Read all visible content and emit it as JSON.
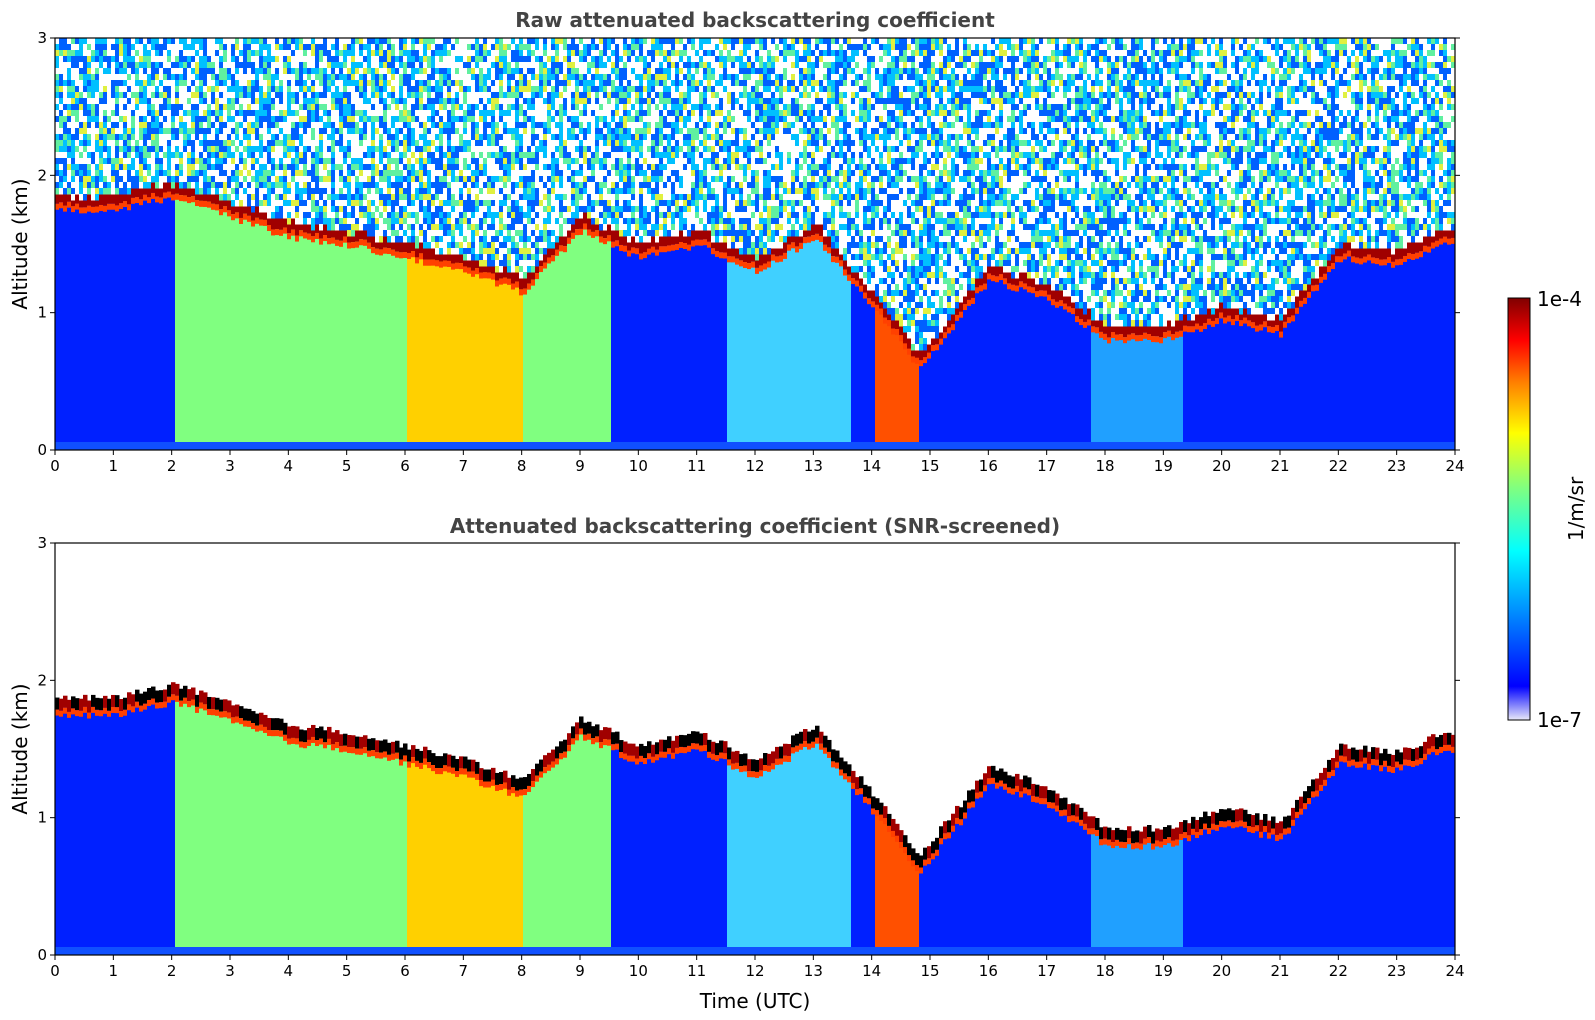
{
  "chart_data": [
    {
      "type": "heatmap",
      "title": "Raw attenuated backscattering coefficient",
      "xlabel": "",
      "ylabel": "Altitude (km)",
      "xlim": [
        0,
        24
      ],
      "ylim": [
        0,
        3
      ],
      "x_ticks": [
        "0",
        "1",
        "2",
        "3",
        "4",
        "5",
        "6",
        "7",
        "8",
        "9",
        "10",
        "11",
        "12",
        "13",
        "14",
        "15",
        "16",
        "17",
        "18",
        "19",
        "20",
        "21",
        "22",
        "23",
        "24"
      ],
      "y_ticks": [
        "0",
        "1",
        "2",
        "3"
      ],
      "color_scale": "jet, log",
      "cloud_base_layer_km": [
        {
          "t": 0.5,
          "z": 1.8
        },
        {
          "t": 1.0,
          "z": 1.8
        },
        {
          "t": 2.0,
          "z": 1.9
        },
        {
          "t": 3.0,
          "z": 1.75
        },
        {
          "t": 4.0,
          "z": 1.6
        },
        {
          "t": 5.0,
          "z": 1.55
        },
        {
          "t": 6.0,
          "z": 1.45
        },
        {
          "t": 7.0,
          "z": 1.35
        },
        {
          "t": 8.0,
          "z": 1.2
        },
        {
          "t": 9.0,
          "z": 1.65
        },
        {
          "t": 10.0,
          "z": 1.45
        },
        {
          "t": 11.0,
          "z": 1.55
        },
        {
          "t": 12.0,
          "z": 1.35
        },
        {
          "t": 13.0,
          "z": 1.6
        },
        {
          "t": 14.0,
          "z": 1.1
        },
        {
          "t": 14.8,
          "z": 0.65
        },
        {
          "t": 16.0,
          "z": 1.3
        },
        {
          "t": 17.0,
          "z": 1.15
        },
        {
          "t": 18.0,
          "z": 0.85
        },
        {
          "t": 19.0,
          "z": 0.85
        },
        {
          "t": 20.0,
          "z": 1.0
        },
        {
          "t": 21.0,
          "z": 0.9
        },
        {
          "t": 22.0,
          "z": 1.45
        },
        {
          "t": 23.0,
          "z": 1.4
        },
        {
          "t": 23.8,
          "z": 1.55
        }
      ]
    },
    {
      "type": "heatmap",
      "title": "Attenuated backscattering coefficient (SNR-screened)",
      "xlabel": "Time (UTC)",
      "ylabel": "Altitude (km)",
      "xlim": [
        0,
        24
      ],
      "ylim": [
        0,
        3
      ],
      "x_ticks": [
        "0",
        "1",
        "2",
        "3",
        "4",
        "5",
        "6",
        "7",
        "8",
        "9",
        "10",
        "11",
        "12",
        "13",
        "14",
        "15",
        "16",
        "17",
        "18",
        "19",
        "20",
        "21",
        "22",
        "23",
        "24"
      ],
      "y_ticks": [
        "0",
        "1",
        "2",
        "3"
      ],
      "color_scale": "jet, log"
    }
  ],
  "colorbar": {
    "max_label": "1e-4",
    "min_label": "1e-7",
    "unit_label": "1/m/sr",
    "scale": "log",
    "range": [
      1e-07,
      0.0001
    ],
    "colors": [
      "#e8e8f8",
      "#0000ff",
      "#00a0ff",
      "#00ffff",
      "#80ff80",
      "#ffff00",
      "#ff8000",
      "#ff0000",
      "#800000"
    ]
  }
}
